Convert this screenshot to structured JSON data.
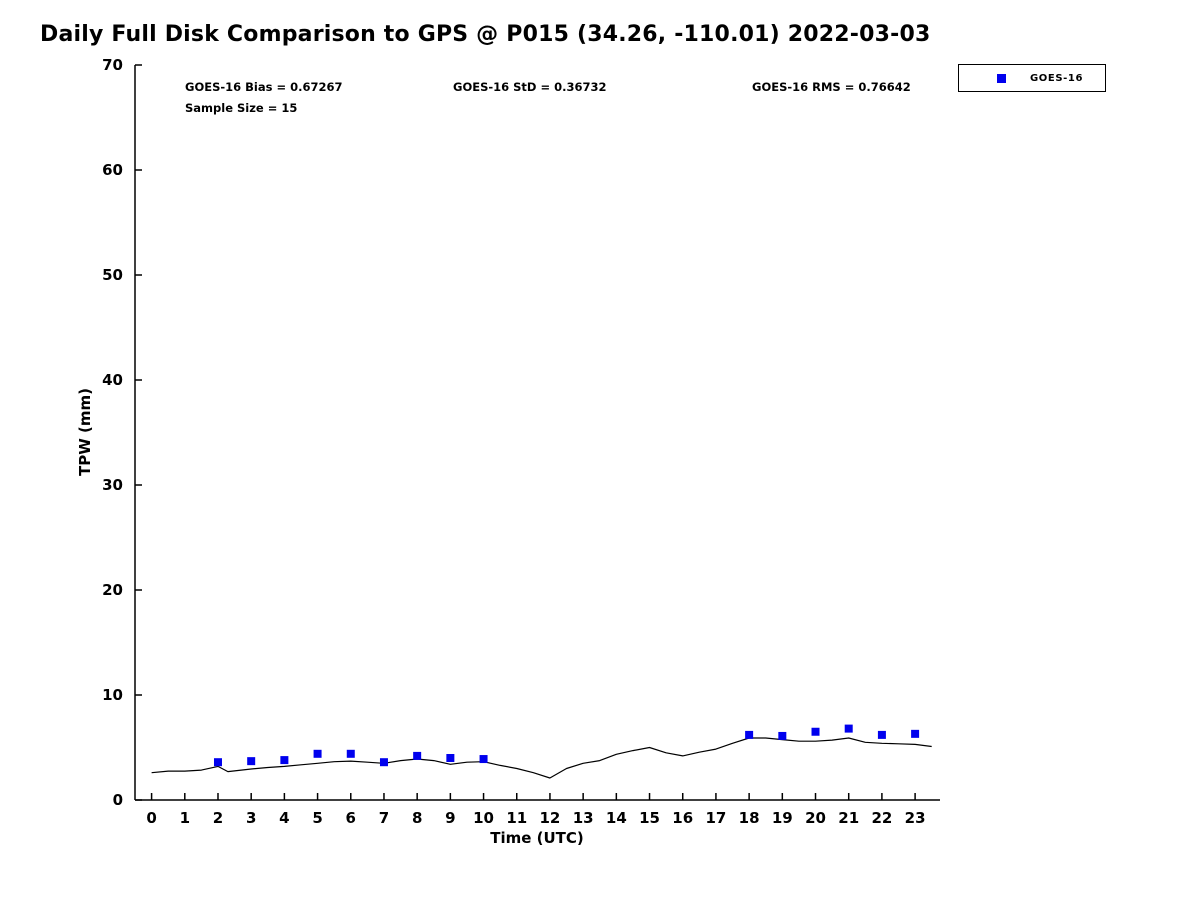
{
  "title": "Daily Full Disk Comparison to GPS @ P015 (34.26, -110.01) 2022-03-03",
  "stats": {
    "bias": "GOES-16 Bias = 0.67267",
    "std": "GOES-16 StD = 0.36732",
    "rms": "GOES-16 RMS = 0.76642",
    "sample_size": "Sample Size = 15"
  },
  "legend": {
    "position": "top-right",
    "entries": [
      {
        "label": "GOES-16",
        "marker": "square",
        "color": "#0000ee"
      }
    ]
  },
  "chart_data": {
    "type": "line",
    "title": "Daily Full Disk Comparison to GPS @ P015 (34.26, -110.01) 2022-03-03",
    "xlabel": "Time (UTC)",
    "ylabel": "TPW (mm)",
    "xlim": [
      -0.5,
      23.75
    ],
    "ylim": [
      0,
      70
    ],
    "x_ticks": [
      0,
      1,
      2,
      3,
      4,
      5,
      6,
      7,
      8,
      9,
      10,
      11,
      12,
      13,
      14,
      15,
      16,
      17,
      18,
      19,
      20,
      21,
      22,
      23
    ],
    "y_ticks": [
      0,
      10,
      20,
      30,
      40,
      50,
      60,
      70
    ],
    "grid": false,
    "legend_position": "top-right",
    "series": [
      {
        "name": "GPS",
        "type": "line",
        "color": "#000000",
        "x": [
          0,
          0.5,
          1,
          1.5,
          2,
          2.3,
          3,
          3.5,
          4,
          4.5,
          5,
          5.5,
          6,
          6.5,
          7,
          7.5,
          8,
          8.5,
          9,
          9.5,
          10,
          10.5,
          11,
          11.5,
          12,
          12.5,
          13,
          13.5,
          14,
          14.5,
          15,
          15.5,
          16,
          16.5,
          17,
          17.5,
          18,
          18.5,
          19,
          19.5,
          20,
          20.5,
          21,
          21.5,
          22,
          22.5,
          23,
          23.5
        ],
        "y": [
          2.6,
          2.75,
          2.75,
          2.85,
          3.2,
          2.7,
          2.95,
          3.1,
          3.2,
          3.35,
          3.5,
          3.65,
          3.7,
          3.6,
          3.5,
          3.75,
          3.9,
          3.75,
          3.4,
          3.6,
          3.65,
          3.3,
          3.0,
          2.6,
          2.1,
          3.0,
          3.5,
          3.75,
          4.35,
          4.7,
          5.0,
          4.5,
          4.2,
          4.55,
          4.85,
          5.4,
          5.9,
          5.9,
          5.75,
          5.6,
          5.6,
          5.7,
          5.9,
          5.5,
          5.4,
          5.35,
          5.3,
          5.1
        ]
      },
      {
        "name": "GOES-16",
        "type": "scatter",
        "marker": "square",
        "color": "#0000ee",
        "x": [
          2,
          3,
          4,
          5,
          6,
          7,
          8,
          9,
          10,
          18,
          19,
          20,
          21,
          22,
          23
        ],
        "y": [
          3.6,
          3.7,
          3.8,
          4.4,
          4.4,
          3.6,
          4.2,
          4.0,
          3.9,
          6.2,
          6.1,
          6.5,
          6.8,
          6.2,
          6.3
        ]
      }
    ]
  }
}
